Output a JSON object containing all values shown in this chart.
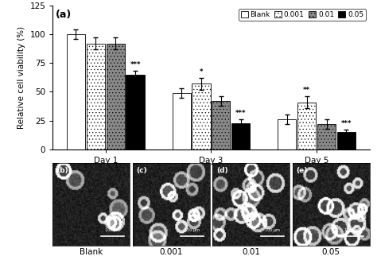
{
  "title": "(a)",
  "ylabel": "Relative cell viability (%)",
  "groups": [
    "Day 1",
    "Day 3",
    "Day 5"
  ],
  "legend_labels": [
    "Blank",
    "0.001",
    "0.01",
    "0.05"
  ],
  "bar_values": [
    [
      100,
      92,
      92,
      65
    ],
    [
      49,
      57,
      42,
      23
    ],
    [
      26,
      41,
      22,
      15
    ]
  ],
  "bar_errors": [
    [
      4,
      5,
      5,
      3
    ],
    [
      4,
      5,
      4,
      3
    ],
    [
      4,
      5,
      4,
      2
    ]
  ],
  "ylim": [
    0,
    125
  ],
  "yticks": [
    0,
    25,
    50,
    75,
    100,
    125
  ],
  "significance": [
    [
      "",
      "",
      "",
      "***"
    ],
    [
      "",
      "*",
      "",
      "***"
    ],
    [
      "",
      "**",
      "",
      "***"
    ]
  ],
  "bar_colors": [
    "white",
    "white",
    "#888888",
    "black"
  ],
  "bar_hatches": [
    "",
    "....",
    "....",
    ""
  ],
  "bar_hatch_colors": [
    "black",
    "black",
    "black",
    "black"
  ],
  "bottom_labels": [
    "Blank",
    "0.001",
    "0.01",
    "0.05"
  ],
  "bottom_panel_labels": [
    "(b)",
    "(c)",
    "(d)",
    "(e)"
  ]
}
